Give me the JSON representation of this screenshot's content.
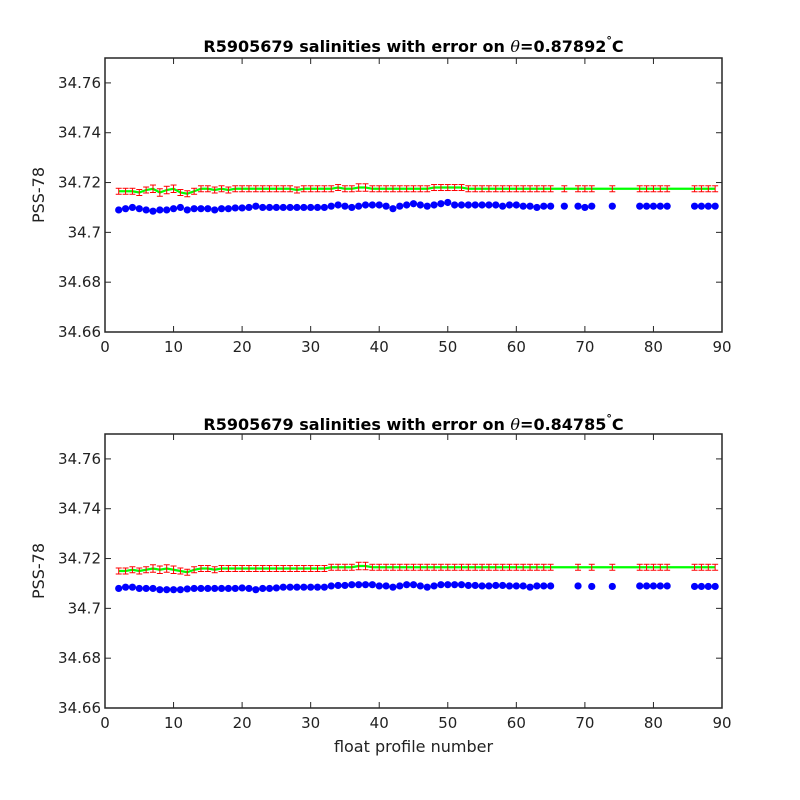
{
  "chart_data": [
    {
      "type": "scatter",
      "title_prefix": "R5905679 salinities with error on ",
      "title_theta": "θ",
      "title_value": "=0.87892",
      "title_degree": "°",
      "title_unit": "C",
      "ylabel": "PSS-78",
      "xlabel": "",
      "xlim": [
        0,
        90
      ],
      "ylim": [
        34.66,
        34.77
      ],
      "xticks": [
        "0",
        "10",
        "20",
        "30",
        "40",
        "50",
        "60",
        "70",
        "80",
        "90"
      ],
      "yticks": [
        "34.66",
        "34.68",
        "34.7",
        "34.72",
        "34.74",
        "34.76"
      ],
      "x": [
        2,
        3,
        4,
        5,
        6,
        7,
        8,
        9,
        10,
        11,
        12,
        13,
        14,
        15,
        16,
        17,
        18,
        19,
        20,
        21,
        22,
        23,
        24,
        25,
        26,
        27,
        28,
        29,
        30,
        31,
        32,
        33,
        34,
        35,
        36,
        37,
        38,
        39,
        40,
        41,
        42,
        43,
        44,
        45,
        46,
        47,
        48,
        49,
        50,
        51,
        52,
        53,
        54,
        55,
        56,
        57,
        58,
        59,
        60,
        61,
        62,
        63,
        64,
        65,
        67,
        69,
        70,
        71,
        74,
        78,
        79,
        80,
        81,
        82,
        86,
        87,
        88,
        89
      ],
      "series": [
        {
          "name": "",
          "color": "#0000ff",
          "marker": "dot",
          "values": [
            34.709,
            34.7095,
            34.71,
            34.7095,
            34.709,
            34.7085,
            34.709,
            34.709,
            34.7095,
            34.71,
            34.709,
            34.7095,
            34.7095,
            34.7095,
            34.709,
            34.7095,
            34.7095,
            34.7098,
            34.7098,
            34.71,
            34.7105,
            34.71,
            34.71,
            34.71,
            34.71,
            34.71,
            34.71,
            34.71,
            34.71,
            34.71,
            34.71,
            34.7105,
            34.711,
            34.7105,
            34.71,
            34.7105,
            34.711,
            34.711,
            34.711,
            34.7105,
            34.7095,
            34.7105,
            34.711,
            34.7115,
            34.711,
            34.7105,
            34.711,
            34.7115,
            34.712,
            34.711,
            34.711,
            34.711,
            34.711,
            34.711,
            34.711,
            34.711,
            34.7105,
            34.711,
            34.711,
            34.7105,
            34.7105,
            34.71,
            34.7105,
            34.7105,
            34.7105,
            34.7105,
            34.71,
            34.7105,
            34.7105,
            34.7105,
            34.7105,
            34.7105,
            34.7105,
            34.7105,
            34.7105,
            34.7105,
            34.7105,
            34.7105
          ]
        },
        {
          "name": "",
          "color": "#ff0000",
          "marker": "errorbar",
          "fit_color": "#00ff00",
          "values": [
            34.7165,
            34.7165,
            34.7165,
            34.716,
            34.717,
            34.7175,
            34.716,
            34.717,
            34.7175,
            34.716,
            34.7155,
            34.7165,
            34.7175,
            34.7175,
            34.717,
            34.7175,
            34.717,
            34.7175,
            34.7175,
            34.7175,
            34.7175,
            34.7175,
            34.7175,
            34.7175,
            34.7175,
            34.7175,
            34.717,
            34.7175,
            34.7175,
            34.7175,
            34.7175,
            34.7175,
            34.718,
            34.7175,
            34.7175,
            34.718,
            34.718,
            34.7175,
            34.7175,
            34.7175,
            34.7175,
            34.7175,
            34.7175,
            34.7175,
            34.7175,
            34.7175,
            34.718,
            34.718,
            34.718,
            34.718,
            34.718,
            34.7175,
            34.7175,
            34.7175,
            34.7175,
            34.7175,
            34.7175,
            34.7175,
            34.7175,
            34.7175,
            34.7175,
            34.7175,
            34.7175,
            34.7175,
            34.7175,
            34.7175,
            34.7175,
            34.7175,
            34.7175,
            34.7175,
            34.7175,
            34.7175,
            34.7175,
            34.7175,
            34.7175,
            34.7175,
            34.7175,
            34.7175
          ],
          "errors": [
            0.0012,
            0.0012,
            0.0012,
            0.0012,
            0.0012,
            0.0015,
            0.0015,
            0.0015,
            0.0015,
            0.0012,
            0.0012,
            0.0012,
            0.0012,
            0.0012,
            0.0012,
            0.0012,
            0.0012,
            0.0012,
            0.0012,
            0.0012,
            0.0012,
            0.0012,
            0.0012,
            0.0012,
            0.0012,
            0.0012,
            0.0012,
            0.0012,
            0.0012,
            0.0012,
            0.0012,
            0.0012,
            0.0012,
            0.0012,
            0.0012,
            0.0015,
            0.0015,
            0.0012,
            0.0012,
            0.0012,
            0.0012,
            0.0012,
            0.0012,
            0.0012,
            0.0012,
            0.0012,
            0.0012,
            0.0012,
            0.0012,
            0.0012,
            0.0012,
            0.0012,
            0.0012,
            0.0012,
            0.0012,
            0.0012,
            0.0012,
            0.0012,
            0.0012,
            0.0012,
            0.0012,
            0.0012,
            0.0012,
            0.0012,
            0.0012,
            0.0012,
            0.0012,
            0.0012,
            0.0012,
            0.0012,
            0.0012,
            0.0012,
            0.0012,
            0.0012,
            0.0012,
            0.0012,
            0.0012,
            0.0012
          ]
        }
      ]
    },
    {
      "type": "scatter",
      "title_prefix": "R5905679 salinities with error on ",
      "title_theta": "θ",
      "title_value": "=0.84785",
      "title_degree": "°",
      "title_unit": "C",
      "ylabel": "PSS-78",
      "xlabel": "float profile number",
      "xlim": [
        0,
        90
      ],
      "ylim": [
        34.66,
        34.77
      ],
      "xticks": [
        "0",
        "10",
        "20",
        "30",
        "40",
        "50",
        "60",
        "70",
        "80",
        "90"
      ],
      "yticks": [
        "34.66",
        "34.68",
        "34.7",
        "34.72",
        "34.74",
        "34.76"
      ],
      "x": [
        2,
        3,
        4,
        5,
        6,
        7,
        8,
        9,
        10,
        11,
        12,
        13,
        14,
        15,
        16,
        17,
        18,
        19,
        20,
        21,
        22,
        23,
        24,
        25,
        26,
        27,
        28,
        29,
        30,
        31,
        32,
        33,
        34,
        35,
        36,
        37,
        38,
        39,
        40,
        41,
        42,
        43,
        44,
        45,
        46,
        47,
        48,
        49,
        50,
        51,
        52,
        53,
        54,
        55,
        56,
        57,
        58,
        59,
        60,
        61,
        62,
        63,
        64,
        65,
        69,
        71,
        74,
        78,
        79,
        80,
        81,
        82,
        86,
        87,
        88,
        89
      ],
      "series": [
        {
          "name": "",
          "color": "#0000ff",
          "marker": "dot",
          "values": [
            34.708,
            34.7085,
            34.7085,
            34.708,
            34.708,
            34.708,
            34.7075,
            34.7075,
            34.7075,
            34.7075,
            34.7078,
            34.708,
            34.708,
            34.708,
            34.708,
            34.708,
            34.708,
            34.708,
            34.7082,
            34.708,
            34.7075,
            34.708,
            34.708,
            34.7082,
            34.7085,
            34.7085,
            34.7085,
            34.7085,
            34.7085,
            34.7085,
            34.7085,
            34.709,
            34.7092,
            34.7092,
            34.7095,
            34.7095,
            34.7095,
            34.7095,
            34.709,
            34.709,
            34.7085,
            34.709,
            34.7095,
            34.7095,
            34.709,
            34.7085,
            34.709,
            34.7095,
            34.7095,
            34.7095,
            34.7095,
            34.7092,
            34.7092,
            34.709,
            34.709,
            34.7092,
            34.7092,
            34.709,
            34.709,
            34.709,
            34.7085,
            34.709,
            34.709,
            34.709,
            34.709,
            34.7088,
            34.7088,
            34.709,
            34.709,
            34.709,
            34.709,
            34.709,
            34.7088,
            34.7088,
            34.7088,
            34.7088
          ]
        },
        {
          "name": "",
          "color": "#ff0000",
          "marker": "errorbar",
          "fit_color": "#00ff00",
          "values": [
            34.715,
            34.715,
            34.7155,
            34.715,
            34.7155,
            34.716,
            34.7155,
            34.716,
            34.7155,
            34.715,
            34.7145,
            34.7155,
            34.716,
            34.716,
            34.7155,
            34.716,
            34.716,
            34.716,
            34.716,
            34.716,
            34.716,
            34.716,
            34.716,
            34.716,
            34.716,
            34.716,
            34.716,
            34.716,
            34.716,
            34.716,
            34.716,
            34.7165,
            34.7165,
            34.7165,
            34.7165,
            34.717,
            34.717,
            34.7165,
            34.7165,
            34.7165,
            34.7165,
            34.7165,
            34.7165,
            34.7165,
            34.7165,
            34.7165,
            34.7165,
            34.7165,
            34.7165,
            34.7165,
            34.7165,
            34.7165,
            34.7165,
            34.7165,
            34.7165,
            34.7165,
            34.7165,
            34.7165,
            34.7165,
            34.7165,
            34.7165,
            34.7165,
            34.7165,
            34.7165,
            34.7165,
            34.7165,
            34.7165,
            34.7165,
            34.7165,
            34.7165,
            34.7165,
            34.7165,
            34.7165,
            34.7165,
            34.7165,
            34.7165
          ],
          "errors": [
            0.0012,
            0.0012,
            0.0012,
            0.0012,
            0.0012,
            0.0015,
            0.0015,
            0.0015,
            0.0015,
            0.0012,
            0.0012,
            0.0012,
            0.0012,
            0.0012,
            0.0012,
            0.0012,
            0.0012,
            0.0012,
            0.0012,
            0.0012,
            0.0012,
            0.0012,
            0.0012,
            0.0012,
            0.0012,
            0.0012,
            0.0012,
            0.0012,
            0.0012,
            0.0012,
            0.0012,
            0.0012,
            0.0012,
            0.0012,
            0.0012,
            0.0015,
            0.0015,
            0.0012,
            0.0012,
            0.0012,
            0.0012,
            0.0012,
            0.0012,
            0.0012,
            0.0012,
            0.0012,
            0.0012,
            0.0012,
            0.0012,
            0.0012,
            0.0012,
            0.0012,
            0.0012,
            0.0012,
            0.0012,
            0.0012,
            0.0012,
            0.0012,
            0.0012,
            0.0012,
            0.0012,
            0.0012,
            0.0012,
            0.0012,
            0.0012,
            0.0012,
            0.0012,
            0.0012,
            0.0012,
            0.0012,
            0.0012,
            0.0012,
            0.0012,
            0.0012,
            0.0012,
            0.0012
          ]
        }
      ]
    }
  ]
}
